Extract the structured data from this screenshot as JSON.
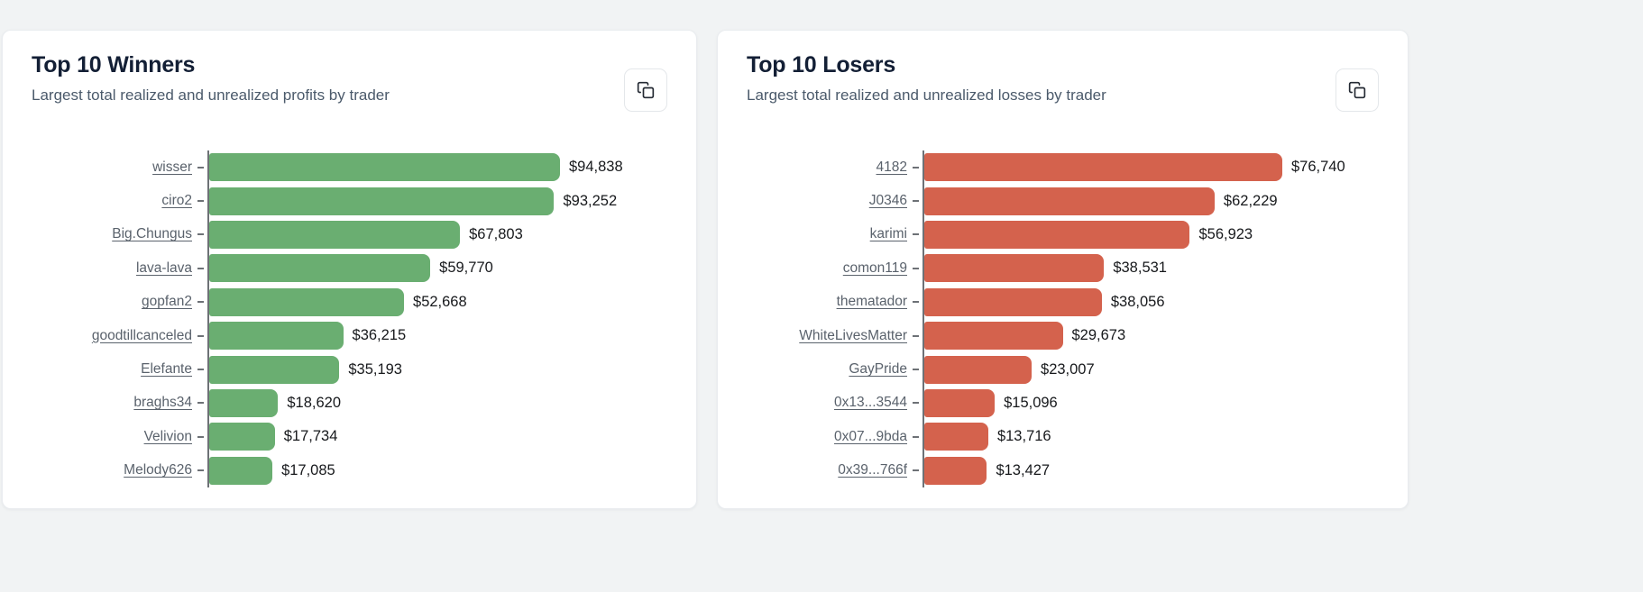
{
  "page": {
    "background": "#f1f3f4"
  },
  "cards": [
    {
      "title": "Top 10 Winners",
      "subtitle": "Largest total realized and unrealized profits by trader",
      "copy_button": "copy-icon"
    },
    {
      "title": "Top 10 Losers",
      "subtitle": "Largest total realized and unrealized losses by trader",
      "copy_button": "copy-icon"
    }
  ],
  "chart_data": [
    {
      "type": "bar",
      "orientation": "horizontal",
      "title": "Top 10 Winners",
      "categories": [
        "wisser",
        "ciro2",
        "Big.Chungus",
        "lava-lava",
        "gopfan2",
        "goodtillcanceled",
        "Elefante",
        "braghs34",
        "Velivion",
        "Melody626"
      ],
      "values": [
        94838,
        93252,
        67803,
        59770,
        52668,
        36215,
        35193,
        18620,
        17734,
        17085
      ],
      "value_labels": [
        "$94,838",
        "$93,252",
        "$67,803",
        "$59,770",
        "$52,668",
        "$36,215",
        "$35,193",
        "$18,620",
        "$17,734",
        "$17,085"
      ],
      "bar_color": "#6aae71",
      "axis_color": "#6d7176",
      "xlim": [
        0,
        94838
      ],
      "grid": false,
      "legend": false,
      "category_links": true
    },
    {
      "type": "bar",
      "orientation": "horizontal",
      "title": "Top 10 Losers",
      "categories": [
        "4182",
        "J0346",
        "karimi",
        "comon119",
        "thematador",
        "WhiteLivesMatter",
        "GayPride",
        "0x13...3544",
        "0x07...9bda",
        "0x39...766f"
      ],
      "values": [
        76740,
        62229,
        56923,
        38531,
        38056,
        29673,
        23007,
        15096,
        13716,
        13427
      ],
      "value_labels": [
        "$76,740",
        "$62,229",
        "$56,923",
        "$38,531",
        "$38,056",
        "$29,673",
        "$23,007",
        "$15,096",
        "$13,716",
        "$13,427"
      ],
      "bar_color": "#d4624d",
      "axis_color": "#6d7176",
      "xlim": [
        0,
        76740
      ],
      "grid": false,
      "legend": false,
      "category_links": true
    }
  ]
}
